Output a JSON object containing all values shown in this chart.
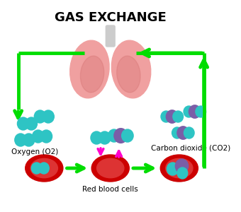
{
  "title": "GAS EXCHANGE",
  "title_fontsize": 13,
  "title_fontweight": "bold",
  "background_color": "#ffffff",
  "label_o2": "Oxygen (O2)",
  "label_co2": "Carbon dioxide (CO2)",
  "label_rbc": "Red blood cells",
  "arrow_color": "#00dd00",
  "magenta_color": "#ff00cc",
  "o2_color": "#2ec4c4",
  "co2_teal_color": "#2ec4c4",
  "co2_purple_color": "#7b5ea7",
  "rbc_outer_color": "#cc0000",
  "rbc_inner_color": "#dd3333",
  "lung_color": "#f0a0a0",
  "lung_shade_color": "#d47070",
  "trachea_color": "#cccccc"
}
